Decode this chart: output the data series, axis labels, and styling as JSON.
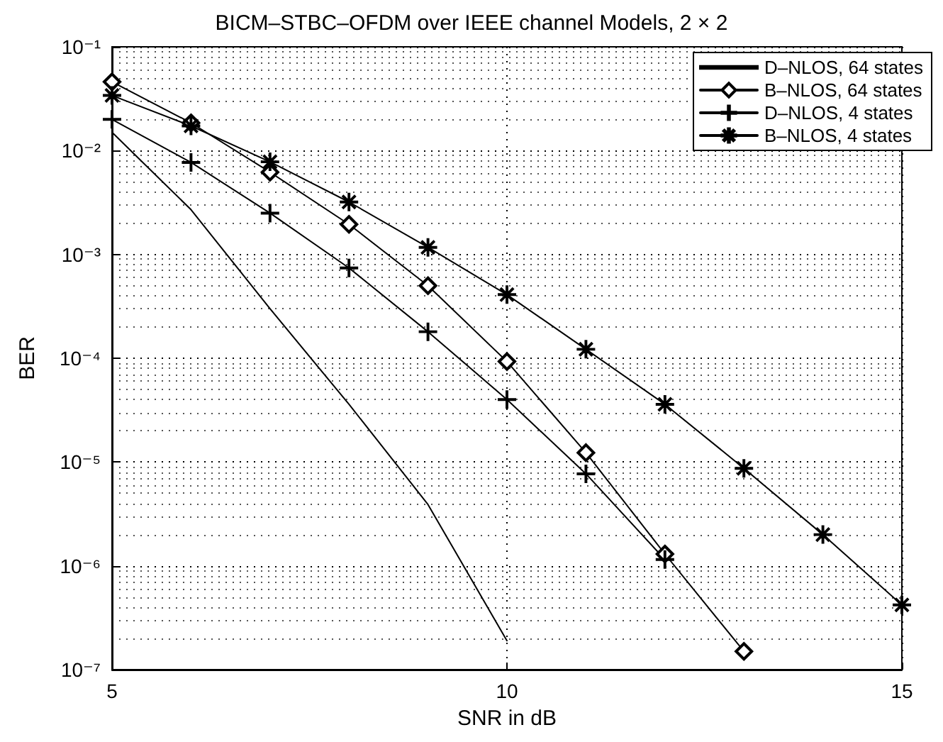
{
  "chart_data": {
    "type": "line",
    "title": "BICM–STBC–OFDM over IEEE channel Models, 2 × 2",
    "xlabel": "SNR in dB",
    "ylabel": "BER",
    "x": [
      5,
      6,
      7,
      8,
      9,
      10,
      11,
      12,
      13,
      14,
      15
    ],
    "series": [
      {
        "name": "D–NLOS, 64 states",
        "color": "#000000",
        "marker": "none",
        "values": [
          0.015,
          0.0027,
          0.0003,
          3.6e-05,
          3.9e-06,
          1.9e-07,
          null,
          null,
          null,
          null,
          null
        ]
      },
      {
        "name": "B–NLOS, 64 states",
        "color": "#000000",
        "marker": "diamond",
        "values": [
          0.046,
          0.0185,
          0.0062,
          0.00195,
          0.0005,
          9.3e-05,
          1.23e-05,
          1.3e-06,
          1.5e-07,
          null,
          null
        ]
      },
      {
        "name": "D–NLOS, 4 states",
        "color": "#000000",
        "marker": "cross",
        "values": [
          0.02,
          0.0077,
          0.0025,
          0.00074,
          0.00018,
          4e-05,
          7.7e-06,
          1.15e-06,
          null,
          null,
          null
        ]
      },
      {
        "name": "B–NLOS, 4 states",
        "color": "#000000",
        "marker": "star",
        "values": [
          0.034,
          0.0173,
          0.0078,
          0.0032,
          0.00117,
          0.00041,
          0.000122,
          3.6e-05,
          8.7e-06,
          2e-06,
          4.2e-07
        ]
      }
    ],
    "log": "y",
    "xlim": [
      5,
      15
    ],
    "xticks": [
      5,
      10,
      15
    ],
    "ylim": [
      1e-07,
      0.1
    ],
    "yticks": [
      {
        "value": 0.1,
        "label": "10⁻¹"
      },
      {
        "value": 0.01,
        "label": "10⁻²"
      },
      {
        "value": 0.001,
        "label": "10⁻³"
      },
      {
        "value": 0.0001,
        "label": "10⁻⁴"
      },
      {
        "value": 1e-05,
        "label": "10⁻⁵"
      },
      {
        "value": 1e-06,
        "label": "10⁻⁶"
      },
      {
        "value": 1e-07,
        "label": "10⁻⁷"
      }
    ],
    "grid": true,
    "legend": "top right",
    "line_style": "solid"
  }
}
